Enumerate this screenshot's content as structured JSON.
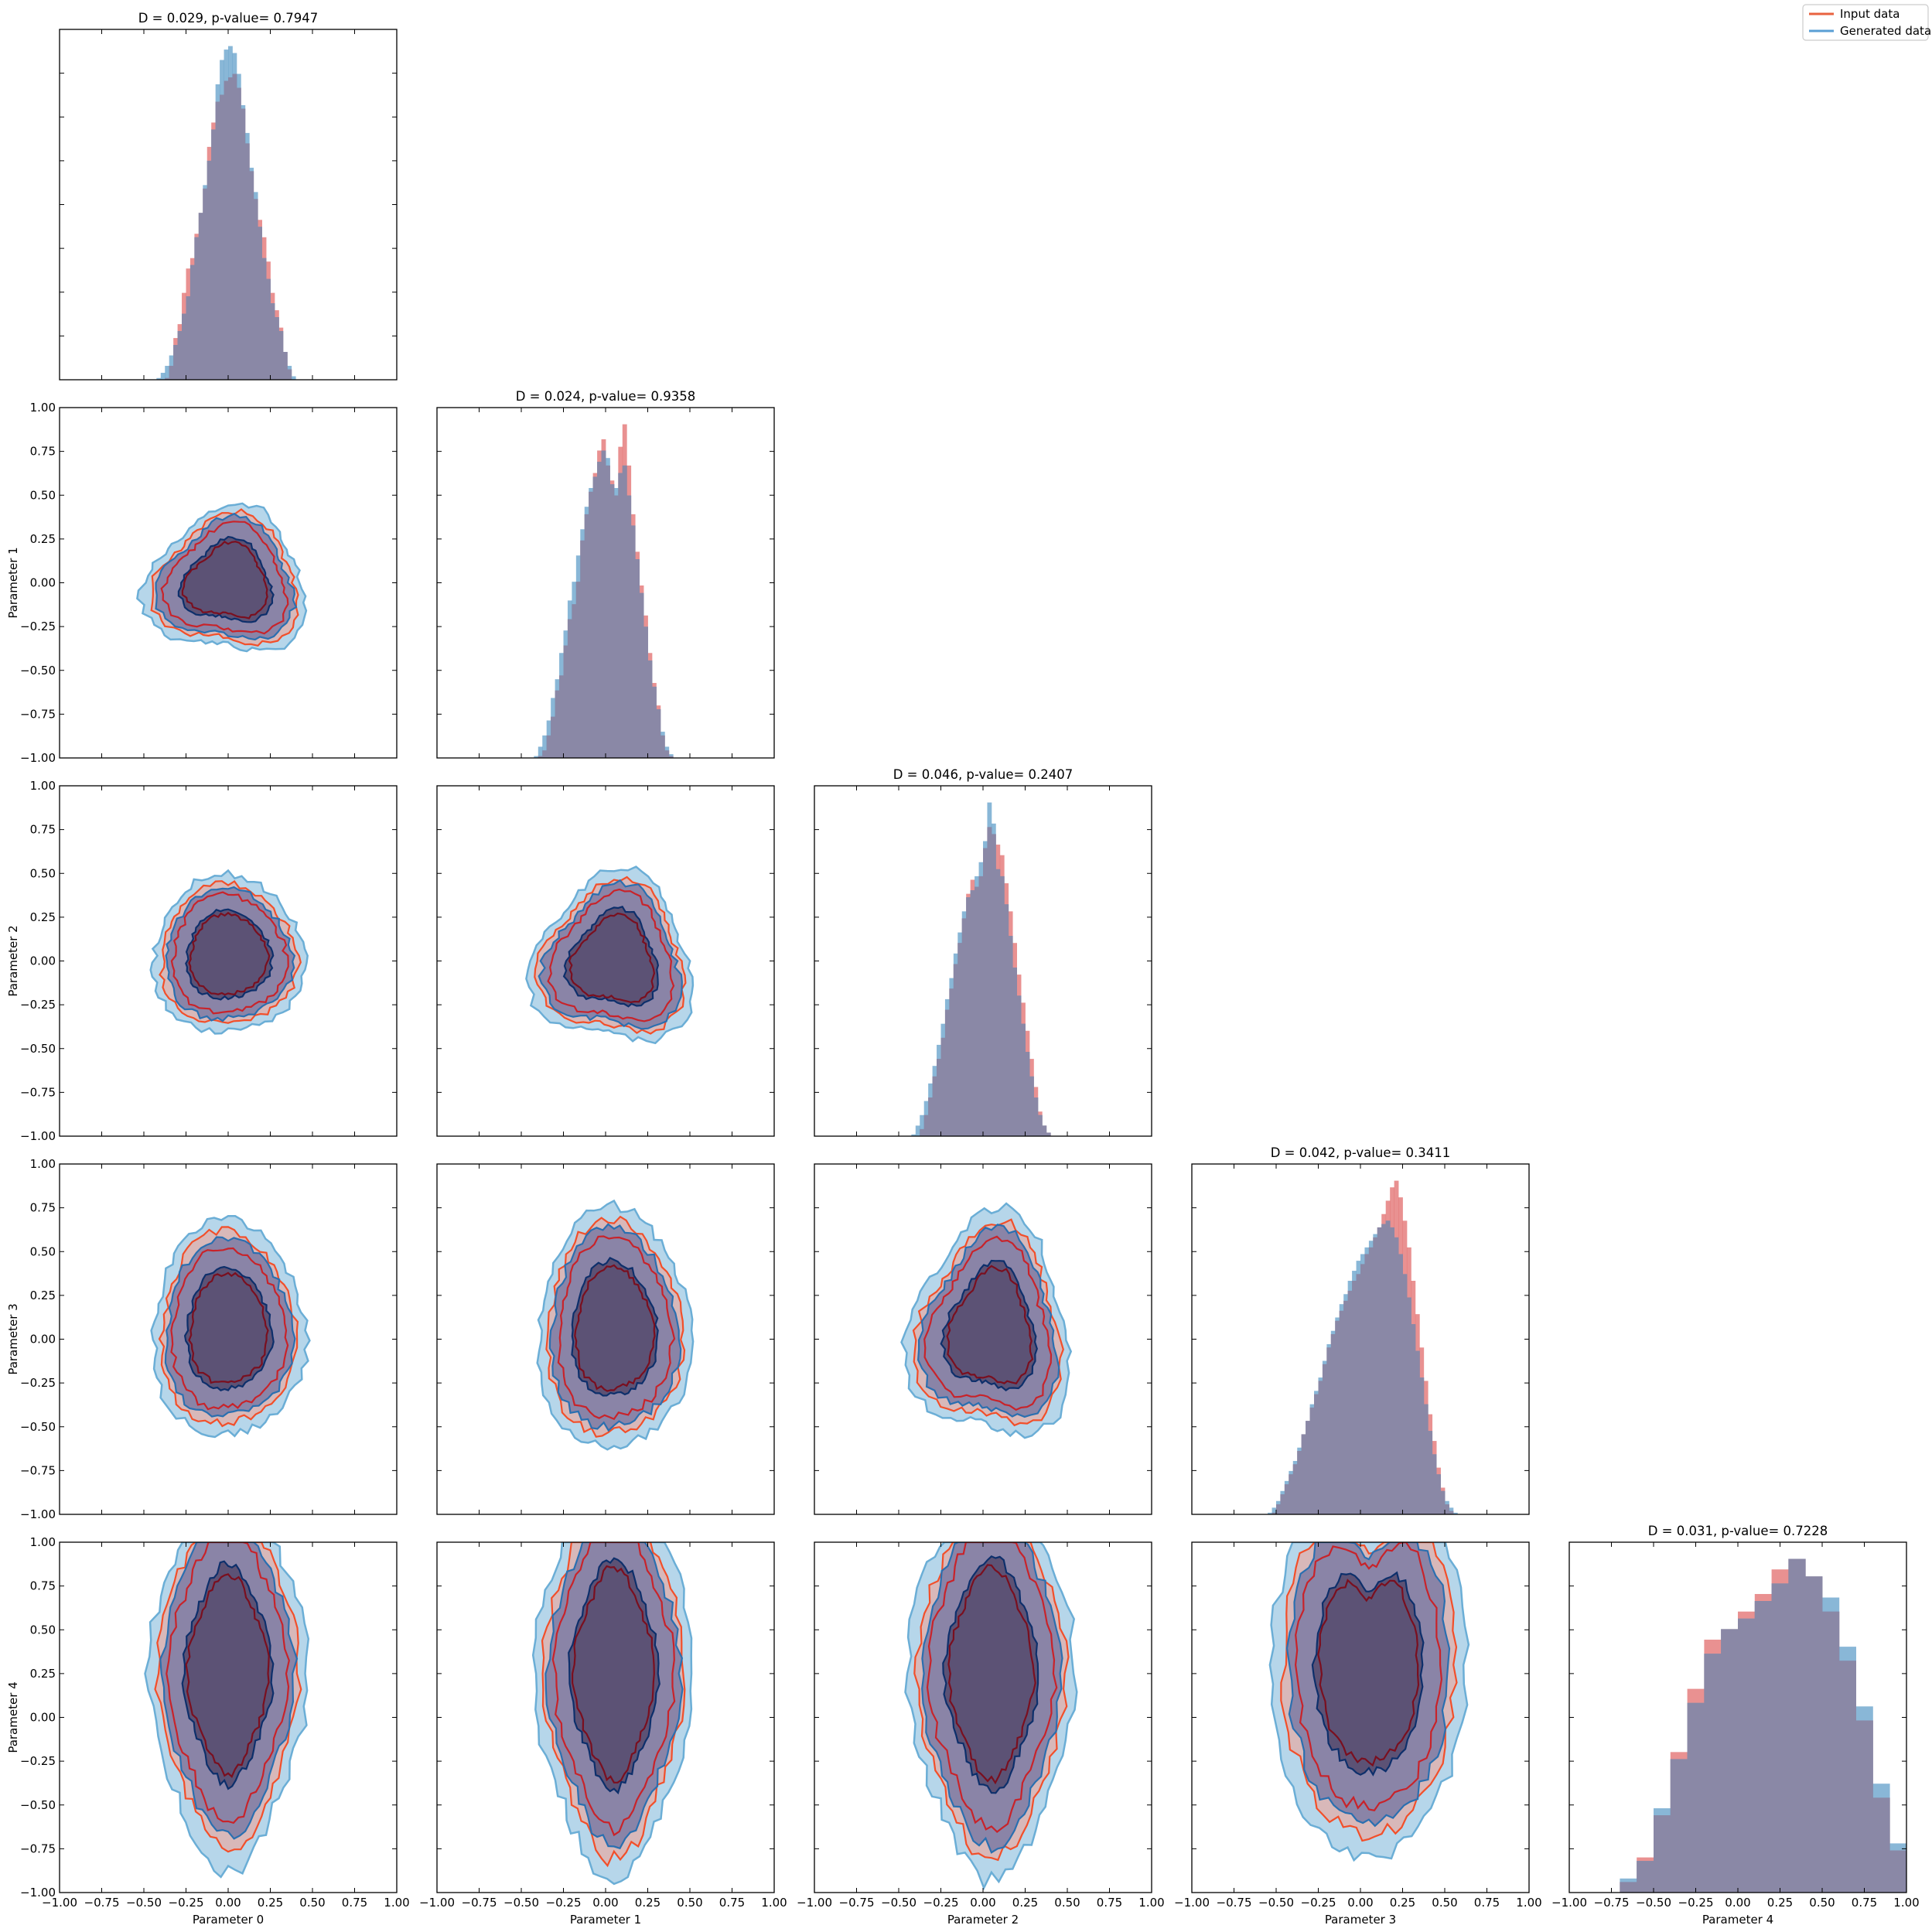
{
  "legend": {
    "location": "top-right",
    "items": [
      {
        "label": "Input data",
        "color": "#e8623f"
      },
      {
        "label": "Generated data",
        "color": "#5a9fd4"
      }
    ]
  },
  "colors": {
    "input_fill": "#e06666",
    "generated_fill": "#5b9bc8",
    "overlap_fill": "#8a88a6",
    "input_line_outer": "#f24f2a",
    "input_line_mid": "#c8232a",
    "input_line_inner": "#7a0f1f",
    "gen_line_outer": "#6baed6",
    "gen_line_mid": "#2a6fb0",
    "gen_line_inner": "#0d2f6b",
    "gen_fill_outer": "#a9cfe6",
    "core_fill": "#5a4f72"
  },
  "chart_data": {
    "type": "corner",
    "parameters": [
      "Parameter 0",
      "Parameter 1",
      "Parameter 2",
      "Parameter 3",
      "Parameter 4"
    ],
    "axis_range": [
      -1.0,
      1.0
    ],
    "tick_values": [
      -1.0,
      -0.75,
      -0.5,
      -0.25,
      0.0,
      0.25,
      0.5,
      0.75,
      1.0
    ],
    "tick_labels": [
      "−1.00",
      "−0.75",
      "−0.50",
      "−0.25",
      "0.00",
      "0.25",
      "0.50",
      "0.75",
      "1.00"
    ],
    "grid": false,
    "diagonal": [
      {
        "title": "D = 0.029, p-value= 0.7947",
        "bin_edges": [
          -0.5,
          -0.475,
          -0.45,
          -0.425,
          -0.4,
          -0.375,
          -0.35,
          -0.325,
          -0.3,
          -0.275,
          -0.25,
          -0.225,
          -0.2,
          -0.175,
          -0.15,
          -0.125,
          -0.1,
          -0.075,
          -0.05,
          -0.025,
          0.0,
          0.025,
          0.05,
          0.075,
          0.1,
          0.125,
          0.15,
          0.175,
          0.2,
          0.225,
          0.25,
          0.275,
          0.3,
          0.325,
          0.35,
          0.375,
          0.4,
          0.425,
          0.45,
          0.475,
          0.5
        ],
        "input_counts": [
          0,
          0,
          0,
          0,
          0,
          0.5,
          4,
          12,
          16,
          25,
          32,
          35,
          42,
          48,
          55,
          67,
          74,
          80,
          82,
          86,
          87,
          88,
          84,
          78,
          68,
          60,
          52,
          46,
          41,
          34,
          25,
          20,
          15,
          8,
          3,
          0,
          0,
          0,
          0,
          0
        ],
        "generated_counts": [
          0,
          0,
          0,
          0.5,
          2,
          4,
          7,
          10,
          14,
          19,
          24,
          33,
          41,
          48,
          56,
          63,
          72,
          85,
          92,
          95,
          96,
          94,
          88,
          79,
          71,
          61,
          54,
          44,
          35,
          29,
          22,
          18,
          14,
          8,
          4,
          1,
          0,
          0,
          0,
          0
        ]
      },
      {
        "title": "D = 0.024, p-value= 0.9358",
        "bin_edges": [
          -0.5,
          -0.475,
          -0.45,
          -0.425,
          -0.4,
          -0.375,
          -0.35,
          -0.325,
          -0.3,
          -0.275,
          -0.25,
          -0.225,
          -0.2,
          -0.175,
          -0.15,
          -0.125,
          -0.1,
          -0.075,
          -0.05,
          -0.025,
          0.0,
          0.025,
          0.05,
          0.075,
          0.1,
          0.125,
          0.15,
          0.175,
          0.2,
          0.225,
          0.25,
          0.275,
          0.3,
          0.325,
          0.35,
          0.375,
          0.4,
          0.425,
          0.45,
          0.475,
          0.5
        ],
        "input_counts": [
          0,
          0,
          0,
          0,
          0.5,
          2,
          6,
          11,
          18,
          22,
          30,
          37,
          41,
          47,
          58,
          65,
          71,
          76,
          82,
          85,
          78,
          74,
          70,
          83,
          89,
          78,
          65,
          55,
          46,
          38,
          28,
          20,
          14,
          6,
          2,
          0.5,
          0,
          0,
          0,
          0
        ],
        "generated_counts": [
          0,
          0,
          0,
          0.5,
          3,
          6,
          10,
          16,
          21,
          28,
          34,
          42,
          47,
          54,
          61,
          67,
          72,
          75,
          79,
          82,
          80,
          73,
          72,
          76,
          78,
          70,
          62,
          53,
          44,
          35,
          26,
          19,
          13,
          7,
          3,
          1,
          0,
          0,
          0,
          0
        ]
      },
      {
        "title": "D = 0.046, p-value= 0.2407",
        "bin_edges": [
          -0.5,
          -0.475,
          -0.45,
          -0.425,
          -0.4,
          -0.375,
          -0.35,
          -0.325,
          -0.3,
          -0.275,
          -0.25,
          -0.225,
          -0.2,
          -0.175,
          -0.15,
          -0.125,
          -0.1,
          -0.075,
          -0.05,
          -0.025,
          0.0,
          0.025,
          0.05,
          0.075,
          0.1,
          0.125,
          0.15,
          0.175,
          0.2,
          0.225,
          0.25,
          0.275,
          0.3,
          0.325,
          0.35,
          0.375,
          0.4,
          0.425,
          0.45,
          0.475,
          0.5
        ],
        "input_counts": [
          0,
          0,
          0,
          0,
          0,
          2,
          6,
          11,
          17,
          22,
          28,
          36,
          42,
          49,
          55,
          62,
          69,
          73,
          71,
          74,
          82,
          88,
          86,
          83,
          80,
          72,
          64,
          55,
          46,
          38,
          30,
          22,
          14,
          7,
          3,
          1,
          0,
          0,
          0,
          0
        ],
        "generated_counts": [
          0,
          0,
          0,
          0.5,
          3,
          6,
          10,
          15,
          20,
          26,
          32,
          39,
          45,
          52,
          58,
          64,
          68,
          70,
          74,
          78,
          84,
          95,
          89,
          76,
          74,
          66,
          57,
          48,
          40,
          32,
          24,
          17,
          11,
          6,
          3,
          1,
          0,
          0,
          0,
          0
        ]
      },
      {
        "title": "D = 0.042, p-value= 0.3411",
        "bin_edges": [
          -0.6,
          -0.575,
          -0.55,
          -0.525,
          -0.5,
          -0.475,
          -0.45,
          -0.425,
          -0.4,
          -0.375,
          -0.35,
          -0.325,
          -0.3,
          -0.275,
          -0.25,
          -0.225,
          -0.2,
          -0.175,
          -0.15,
          -0.125,
          -0.1,
          -0.075,
          -0.05,
          -0.025,
          0.0,
          0.025,
          0.05,
          0.075,
          0.1,
          0.125,
          0.15,
          0.175,
          0.2,
          0.225,
          0.25,
          0.275,
          0.3,
          0.325,
          0.35,
          0.375,
          0.4,
          0.425,
          0.45,
          0.475,
          0.5,
          0.525,
          0.55,
          0.575,
          0.6
        ],
        "input_counts": [
          0,
          0,
          0,
          0.5,
          3,
          6,
          9,
          12,
          15,
          19,
          24,
          28,
          32,
          36,
          40,
          45,
          50,
          54,
          58,
          61,
          64,
          67,
          70,
          72,
          75,
          78,
          80,
          83,
          86,
          90,
          94,
          98,
          100,
          95,
          88,
          80,
          70,
          60,
          50,
          40,
          30,
          22,
          14,
          8,
          3,
          1,
          0,
          0
        ],
        "generated_counts": [
          0,
          0,
          0.5,
          2,
          4,
          7,
          10,
          13,
          16,
          20,
          24,
          28,
          33,
          37,
          41,
          46,
          51,
          55,
          59,
          63,
          66,
          70,
          73,
          76,
          78,
          80,
          82,
          84,
          86,
          87,
          88,
          86,
          83,
          78,
          72,
          65,
          57,
          49,
          41,
          33,
          25,
          18,
          12,
          7,
          4,
          2,
          0.5,
          0
        ]
      },
      {
        "title": "D = 0.031, p-value= 0.7228",
        "bin_edges": [
          -0.7,
          -0.6,
          -0.5,
          -0.4,
          -0.3,
          -0.2,
          -0.1,
          0.0,
          0.1,
          0.2,
          0.3,
          0.4,
          0.5,
          0.6,
          0.7,
          0.8,
          0.9,
          1.0
        ],
        "input_counts": [
          3,
          10,
          22,
          40,
          58,
          72,
          75,
          80,
          85,
          92,
          95,
          90,
          80,
          66,
          49,
          27,
          12
        ],
        "generated_counts": [
          4,
          9,
          24,
          38,
          54,
          68,
          75,
          78,
          83,
          88,
          95,
          90,
          84,
          70,
          53,
          31,
          14
        ]
      }
    ],
    "off_diagonal": [
      {
        "row": "Parameter 1",
        "col": "Parameter 0",
        "center": [
          0.0,
          0.0
        ],
        "extent": [
          0.38,
          0.36
        ],
        "shape": "triangular",
        "levels": 3
      },
      {
        "row": "Parameter 2",
        "col": "Parameter 0",
        "center": [
          0.0,
          0.03
        ],
        "extent": [
          0.38,
          0.38
        ],
        "shape": "round",
        "levels": 3
      },
      {
        "row": "Parameter 2",
        "col": "Parameter 1",
        "center": [
          0.05,
          0.0
        ],
        "extent": [
          0.38,
          0.42
        ],
        "shape": "triangular",
        "levels": 3
      },
      {
        "row": "Parameter 3",
        "col": "Parameter 0",
        "center": [
          0.0,
          0.05
        ],
        "extent": [
          0.38,
          0.52
        ],
        "shape": "round",
        "levels": 3
      },
      {
        "row": "Parameter 3",
        "col": "Parameter 1",
        "center": [
          0.05,
          0.05
        ],
        "extent": [
          0.38,
          0.58
        ],
        "shape": "round",
        "levels": 3
      },
      {
        "row": "Parameter 3",
        "col": "Parameter 2",
        "center": [
          0.05,
          0.05
        ],
        "extent": [
          0.38,
          0.55
        ],
        "shape": "triangular",
        "levels": 3
      },
      {
        "row": "Parameter 4",
        "col": "Parameter 0",
        "center": [
          0.0,
          0.25
        ],
        "extent": [
          0.38,
          0.9
        ],
        "shape": "vertical",
        "levels": 3
      },
      {
        "row": "Parameter 4",
        "col": "Parameter 1",
        "center": [
          0.05,
          0.25
        ],
        "extent": [
          0.38,
          0.95
        ],
        "shape": "vertical",
        "levels": 3
      },
      {
        "row": "Parameter 4",
        "col": "Parameter 2",
        "center": [
          0.05,
          0.25
        ],
        "extent": [
          0.4,
          0.95
        ],
        "shape": "vertical",
        "levels": 3
      },
      {
        "row": "Parameter 4",
        "col": "Parameter 3",
        "center": [
          0.05,
          0.3
        ],
        "extent": [
          0.45,
          1.0
        ],
        "shape": "v-shape",
        "levels": 3
      }
    ]
  }
}
